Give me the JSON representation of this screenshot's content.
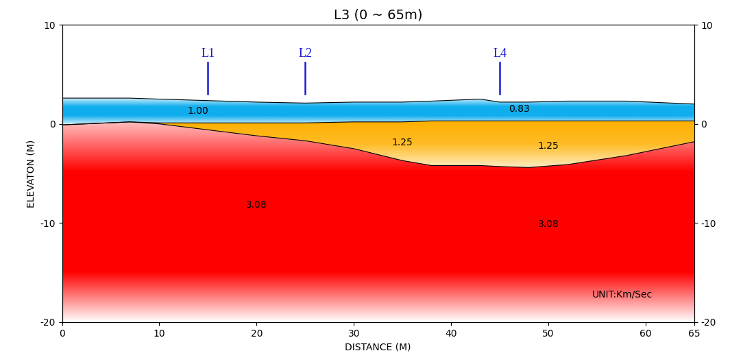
{
  "chart_data": {
    "type": "layered_profile",
    "title": "L3 (0 ~ 65m)",
    "x_label": "DISTANCE (M)",
    "y_label": "ELEVATON (M)",
    "xlim": [
      0,
      65
    ],
    "xticks": [
      0,
      10,
      20,
      30,
      40,
      50,
      60,
      65
    ],
    "ylim": [
      -20,
      10
    ],
    "yticks": [
      -20,
      -10,
      0,
      10
    ],
    "y2lim": [
      -20,
      10
    ],
    "y2ticks": [
      -20,
      -10,
      0,
      10
    ],
    "x": [
      0,
      7,
      10,
      20,
      25,
      30,
      35,
      38,
      43,
      45,
      48,
      52,
      58,
      65
    ],
    "layers": [
      {
        "color": "#10aeee",
        "top": [
          2.6,
          2.6,
          2.5,
          2.2,
          2.1,
          2.2,
          2.2,
          2.3,
          2.5,
          2.2,
          2.2,
          2.3,
          2.3,
          2.0
        ],
        "bottom": [
          -0.1,
          0.2,
          0.1,
          0.1,
          0.1,
          0.2,
          0.2,
          0.3,
          0.3,
          0.3,
          0.3,
          0.3,
          0.3,
          0.3
        ],
        "velocity_labels": [
          {
            "value": 1.0,
            "label": "1.00",
            "x": 14,
            "y": 1.3
          },
          {
            "value": 0.83,
            "label": "0.83",
            "x": 47,
            "y": 1.5
          }
        ]
      },
      {
        "color": "#ffb000",
        "top": [
          -0.1,
          0.2,
          0.1,
          0.1,
          0.1,
          0.2,
          0.2,
          0.3,
          0.3,
          0.3,
          0.3,
          0.3,
          0.3,
          0.3
        ],
        "bottom": [
          -0.1,
          0.2,
          0.0,
          -1.2,
          -1.7,
          -2.5,
          -3.7,
          -4.2,
          -4.2,
          -4.3,
          -4.4,
          -4.1,
          -3.2,
          -1.8
        ],
        "velocity_labels": [
          {
            "value": 1.25,
            "label": "1.25",
            "x": 35,
            "y": -1.9
          },
          {
            "value": 1.25,
            "label": "1.25",
            "x": 50,
            "y": -2.2
          }
        ]
      },
      {
        "color": "#ff0000",
        "top": [
          -0.1,
          0.2,
          0.0,
          -1.2,
          -1.7,
          -2.5,
          -3.7,
          -4.2,
          -4.2,
          -4.3,
          -4.4,
          -4.1,
          -3.2,
          -1.8
        ],
        "bottom": [
          -20,
          -20,
          -20,
          -20,
          -20,
          -20,
          -20,
          -20,
          -20,
          -20,
          -20,
          -20,
          -20,
          -20
        ],
        "velocity_labels": [
          {
            "value": 3.08,
            "label": "3.08",
            "x": 20,
            "y": -8.2
          },
          {
            "value": 3.08,
            "label": "3.08",
            "x": 50,
            "y": -10.1
          }
        ]
      }
    ],
    "markers": {
      "color": "#1a1ad2",
      "y_bottom": 3.0,
      "y_top": 6.2,
      "items": [
        {
          "label": "L1",
          "x": 15
        },
        {
          "label": "L2",
          "x": 25
        },
        {
          "label": "L4",
          "x": 45
        }
      ]
    },
    "annotations": [
      {
        "text": "UNIT:Km/Sec",
        "x": 54.5,
        "y": -17.2
      }
    ]
  }
}
